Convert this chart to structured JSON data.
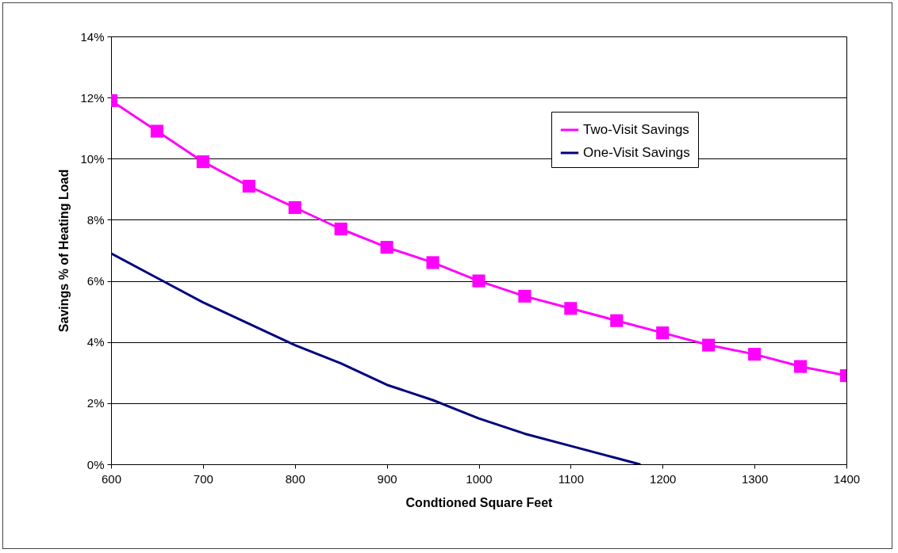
{
  "chart_data": {
    "type": "line",
    "xlabel": "Condtioned Square Feet",
    "ylabel": "Savings %  of Heating Load",
    "xlim": [
      600,
      1400
    ],
    "xticks": [
      600,
      700,
      800,
      900,
      1000,
      1100,
      1200,
      1300,
      1400
    ],
    "ylim": [
      0,
      14
    ],
    "yticks": [
      {
        "value": 0,
        "label": "0%"
      },
      {
        "value": 2,
        "label": "2%"
      },
      {
        "value": 4,
        "label": "4%"
      },
      {
        "value": 6,
        "label": "6%"
      },
      {
        "value": 8,
        "label": "8%"
      },
      {
        "value": 10,
        "label": "10%"
      },
      {
        "value": 12,
        "label": "12%"
      },
      {
        "value": 14,
        "label": "14%"
      }
    ],
    "grid": "y",
    "legend": "top right",
    "line_style": "solid",
    "series": [
      {
        "name": "Two-Visit Savings",
        "color": "#ff00ff",
        "marker": "square",
        "x": [
          600,
          650,
          700,
          750,
          800,
          850,
          900,
          950,
          1000,
          1050,
          1100,
          1150,
          1200,
          1250,
          1300,
          1350,
          1400
        ],
        "values": [
          11.9,
          10.9,
          9.9,
          9.1,
          8.4,
          7.7,
          7.1,
          6.6,
          6.0,
          5.5,
          5.1,
          4.7,
          4.3,
          3.9,
          3.6,
          3.2,
          2.9
        ]
      },
      {
        "name": "One-Visit Savings",
        "color": "#000080",
        "marker": "none",
        "x": [
          600,
          650,
          700,
          750,
          800,
          850,
          900,
          950,
          1000,
          1050,
          1100,
          1150,
          1175
        ],
        "values": [
          6.9,
          6.1,
          5.3,
          4.6,
          3.9,
          3.3,
          2.6,
          2.1,
          1.5,
          1.0,
          0.6,
          0.2,
          0
        ]
      }
    ]
  }
}
